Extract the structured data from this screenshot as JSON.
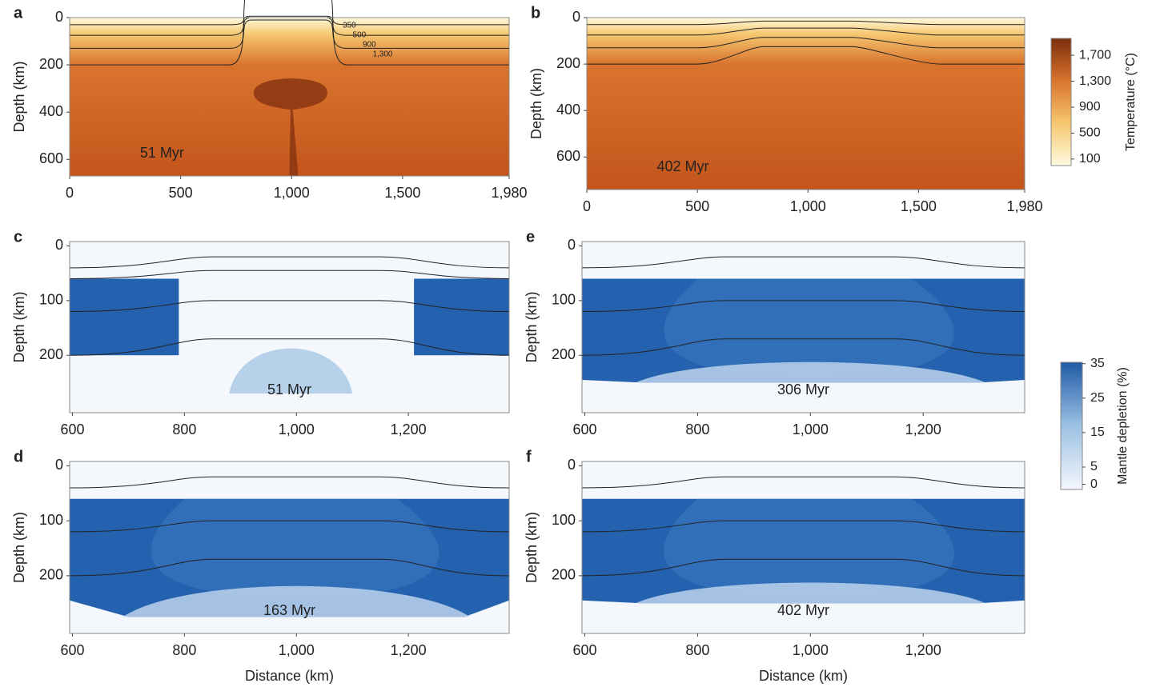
{
  "chart_data": [
    {
      "type": "heatmap",
      "label": "a",
      "annotation": "51 Myr",
      "ylabel": "Depth (km)",
      "colors": [
        "#fffbe0",
        "#f6c770",
        "#d9742e",
        "#c4551c"
      ],
      "xlim": [
        0,
        1980
      ],
      "xticks": [
        0,
        500,
        {
          "value": 1000,
          "label": "1,000"
        },
        {
          "value": 1500,
          "label": "1,500"
        },
        {
          "value": 1980,
          "label": "1,980"
        }
      ],
      "ylim": [
        0,
        670
      ],
      "yticks": [
        0,
        200,
        400,
        600
      ],
      "contour_labels": [
        350,
        500,
        900,
        {
          "value": 1300,
          "label": "1,300"
        }
      ]
    },
    {
      "type": "heatmap",
      "label": "b",
      "annotation": "402 Myr",
      "ylabel": "Depth (km)",
      "colors": [
        "#fffbe0",
        "#f6c770",
        "#d9742e",
        "#c4551c"
      ],
      "xlim": [
        0,
        1980
      ],
      "xticks": [
        0,
        500,
        {
          "value": 1000,
          "label": "1,000"
        },
        {
          "value": 1500,
          "label": "1,500"
        },
        {
          "value": 1980,
          "label": "1,980"
        }
      ],
      "ylim": [
        0,
        740
      ],
      "yticks": [
        0,
        200,
        400,
        600
      ]
    },
    {
      "type": "heatmap",
      "label": "c",
      "annotation": "51 Myr",
      "ylabel": "Depth (km)",
      "colors": [
        "#f4f7fc",
        "#2462b0"
      ],
      "xlim": [
        595,
        1380
      ],
      "xticks": [
        600,
        800,
        {
          "value": 1000,
          "label": "1,000"
        },
        {
          "value": 1200,
          "label": "1,200"
        }
      ],
      "ylim": [
        -8,
        305
      ],
      "yticks": [
        0,
        100,
        200
      ]
    },
    {
      "type": "heatmap",
      "label": "e",
      "annotation": "306 Myr",
      "ylabel": "Depth (km)",
      "colors": [
        "#f4f7fc",
        "#2462b0"
      ],
      "xlim": [
        595,
        1380
      ],
      "xticks": [
        600,
        800,
        {
          "value": 1000,
          "label": "1,000"
        },
        {
          "value": 1200,
          "label": "1,200"
        }
      ],
      "ylim": [
        -8,
        305
      ],
      "yticks": [
        0,
        100,
        200
      ]
    },
    {
      "type": "heatmap",
      "label": "d",
      "annotation": "163 Myr",
      "ylabel": "Depth (km)",
      "xlabel": "Distance (km)",
      "colors": [
        "#f4f7fc",
        "#2462b0"
      ],
      "xlim": [
        595,
        1380
      ],
      "xticks": [
        600,
        800,
        {
          "value": 1000,
          "label": "1,000"
        },
        {
          "value": 1200,
          "label": "1,200"
        }
      ],
      "ylim": [
        -8,
        305
      ],
      "yticks": [
        0,
        100,
        200
      ]
    },
    {
      "type": "heatmap",
      "label": "f",
      "annotation": "402 Myr",
      "ylabel": "Depth (km)",
      "xlabel": "Distance (km)",
      "colors": [
        "#f4f7fc",
        "#2462b0"
      ],
      "xlim": [
        595,
        1380
      ],
      "xticks": [
        600,
        800,
        {
          "value": 1000,
          "label": "1,000"
        },
        {
          "value": 1200,
          "label": "1,200"
        }
      ],
      "ylim": [
        -8,
        305
      ],
      "yticks": [
        0,
        100,
        200
      ]
    },
    {
      "type": "colorbar",
      "label": "Temperature (°C)",
      "colors": [
        "#fffbe0",
        "#f6c770",
        "#d9742e",
        "#7a2e0c"
      ],
      "ylim": [
        0,
        1960
      ],
      "yticks": [
        100,
        500,
        900,
        {
          "value": 1300,
          "label": "1,300"
        },
        {
          "value": 1700,
          "label": "1,700"
        }
      ]
    },
    {
      "type": "colorbar",
      "label": "Mantle depletion (%)",
      "colors": [
        "#f4f7fc",
        "#9cc1e3",
        "#1f5aa6"
      ],
      "ylim": [
        -1.5,
        35.4
      ],
      "yticks": [
        0,
        5,
        15,
        25,
        35
      ]
    }
  ]
}
